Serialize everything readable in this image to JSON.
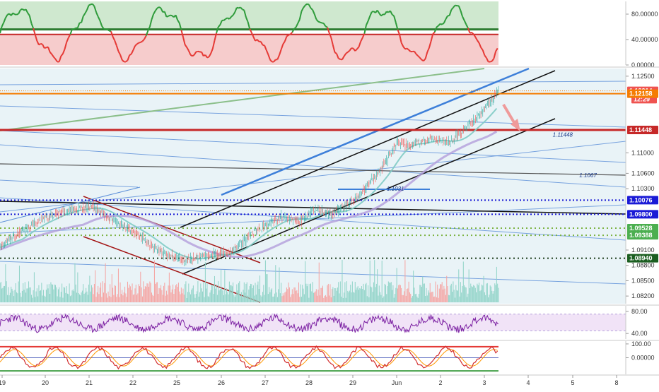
{
  "chart_data": [
    {
      "type": "line",
      "panel": "oscillator-top",
      "ylim": [
        0,
        100
      ],
      "ticks": [
        "80.00000",
        "40.00000",
        "0.00000"
      ],
      "tick_values": [
        80,
        40,
        0
      ],
      "threshold_upper": 56,
      "threshold_lower": 48,
      "colors": {
        "upper_zone": "#cfe8cf",
        "lower_zone": "#f6cccc",
        "above": "#2e9b3a",
        "below": "#e53935",
        "upper_line": "#2e7d32",
        "lower_line": "#c62828"
      }
    },
    {
      "type": "line",
      "panel": "price-main",
      "ylim": [
        1.0805,
        1.1265
      ],
      "price_ticks": [
        "1.12500",
        "1.11000",
        "1.10600",
        "1.10300",
        "1.09100",
        "1.08800",
        "1.08500",
        "1.08200"
      ],
      "price_tick_values": [
        1.125,
        1.11,
        1.106,
        1.103,
        1.091,
        1.088,
        1.085,
        1.082
      ],
      "price_tags": [
        {
          "label": "1.12214",
          "value": 1.12214,
          "color": "#ef5350"
        },
        {
          "label": "12:29",
          "value": 1.1205,
          "color": "#ef5350"
        },
        {
          "label": "1.12158",
          "value": 1.12158,
          "color": "#f57c00"
        },
        {
          "label": "1.11448",
          "value": 1.11448,
          "color": "#c62828"
        },
        {
          "label": "1.10076",
          "value": 1.10076,
          "color": "#1a1ad6"
        },
        {
          "label": "1.09800",
          "value": 1.098,
          "color": "#1a1ad6"
        },
        {
          "label": "1.09528",
          "value": 1.09528,
          "color": "#4caf50"
        },
        {
          "label": "1.09388",
          "value": 1.09388,
          "color": "#4caf50"
        },
        {
          "label": "1.08940",
          "value": 1.0894,
          "color": "#1b5e20"
        }
      ],
      "truncated_tick": "1.1",
      "annotations": [
        {
          "text": "1.11448",
          "x": 3.55,
          "y": 1.1132
        },
        {
          "text": "1.1067",
          "x": 4.15,
          "y": 1.1052
        },
        {
          "text": "1.1031",
          "x": 29.8,
          "y": 1.1026
        }
      ],
      "x_labels": [
        "19",
        "20",
        "21",
        "22",
        "25",
        "26",
        "27",
        "28",
        "29",
        "Jun",
        "2",
        "3",
        "4",
        "5",
        "8"
      ],
      "colors": {
        "up_candle": "#26a69a",
        "down_candle": "#ef5350",
        "background": "#e9f3f7",
        "volume_up": "#8fd3c7",
        "volume_down": "#f5a3a1"
      }
    },
    {
      "type": "line",
      "panel": "rsi",
      "ylim": [
        30,
        90
      ],
      "ticks": [
        "80.00",
        "40.00"
      ],
      "tick_values": [
        80,
        40
      ],
      "band": [
        45,
        75
      ],
      "colors": {
        "line": "#7b1fa2",
        "band": "#f1e3f7"
      }
    },
    {
      "type": "line",
      "panel": "stochastic",
      "ylim": [
        -120,
        120
      ],
      "ticks": [
        "100.00",
        "0.00000"
      ],
      "tick_values": [
        100,
        0
      ],
      "colors": {
        "k": "#d32f2f",
        "d": "#ff9800",
        "mid": "#5c6bc0",
        "upper": "#e53935",
        "lower": "#43a047"
      }
    }
  ]
}
